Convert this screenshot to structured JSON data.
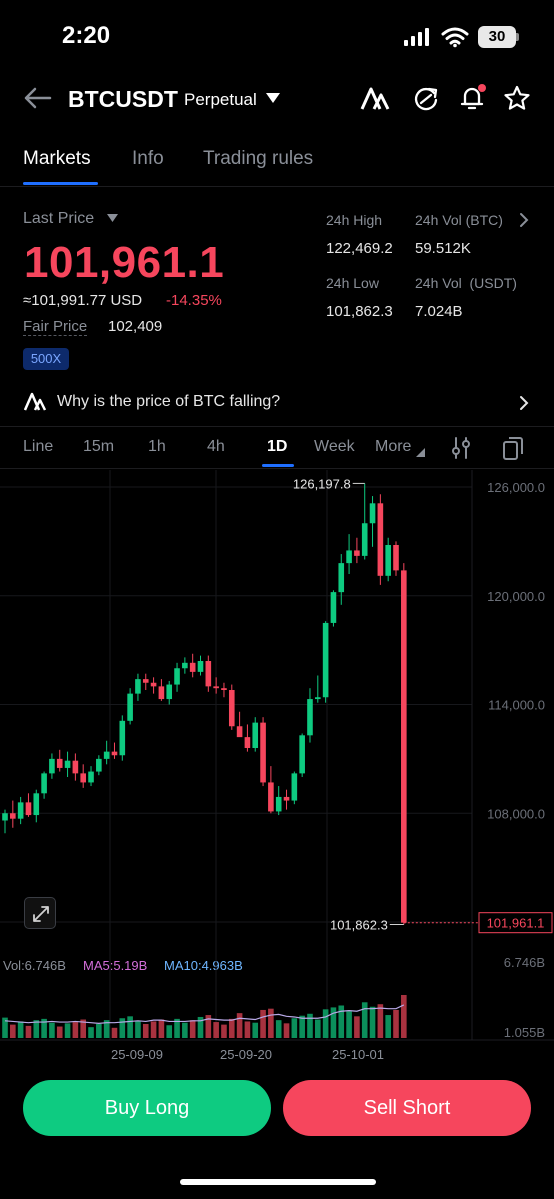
{
  "status_bar": {
    "time": "2:20",
    "battery": "30"
  },
  "header": {
    "pair": "BTCUSDT",
    "contract_type": "Perpetual",
    "icons": [
      "back-arrow-icon",
      "ai-icon",
      "refresh-icon",
      "bell-icon",
      "star-icon"
    ]
  },
  "tabs": [
    {
      "label": "Markets",
      "active": true
    },
    {
      "label": "Info",
      "active": false
    },
    {
      "label": "Trading rules",
      "active": false
    }
  ],
  "price": {
    "last_price_label": "Last Price",
    "last_price": "101,961.1",
    "usd_equiv": "≈101,991.77 USD",
    "change": "-14.35%",
    "fair_price_label": "Fair Price",
    "fair_price": "102,409",
    "leverage_badge": "500X"
  },
  "stats": {
    "high_label": "24h High",
    "high": "122,469.2",
    "vol_btc_label": "24h Vol (BTC)",
    "vol_btc": "59.512K",
    "low_label": "24h Low",
    "low": "101,862.3",
    "vol_usdt_label": "24h Vol  (USDT)",
    "vol_usdt": "7.024B"
  },
  "ai_banner": {
    "text": "Why is the price of BTC falling?"
  },
  "intervals": [
    {
      "label": "Line",
      "active": false
    },
    {
      "label": "15m",
      "active": false
    },
    {
      "label": "1h",
      "active": false
    },
    {
      "label": "4h",
      "active": false
    },
    {
      "label": "1D",
      "active": true
    },
    {
      "label": "Week",
      "active": false
    },
    {
      "label": "More",
      "active": false
    }
  ],
  "volume_panel": {
    "vol": "Vol:6.746B",
    "ma5": "MA5:5.19B",
    "ma10": "MA10:4.963B",
    "top_label": "6.746B",
    "bottom_label": "1.055B"
  },
  "actions": {
    "buy": "Buy Long",
    "sell": "Sell Short"
  },
  "colors": {
    "up": "#0ecb81",
    "down": "#f6465d",
    "accent": "#1f6fff"
  },
  "chart_data": {
    "type": "candlestick",
    "y_ticks": [
      "126,000.0",
      "120,000.0",
      "114,000.0",
      "108,000.0",
      "102,000.0"
    ],
    "y_tick_values": [
      126000,
      120000,
      114000,
      108000,
      102000
    ],
    "x_ticks": [
      "25-09-09",
      "25-09-20",
      "25-10-01"
    ],
    "high_marker": "126,197.8",
    "low_marker": "101,862.3",
    "current_price_tag": "101,961.1",
    "candles": [
      {
        "o": 107600,
        "h": 108200,
        "l": 106900,
        "c": 108000
      },
      {
        "o": 108000,
        "h": 108700,
        "l": 107200,
        "c": 107700
      },
      {
        "o": 107700,
        "h": 108900,
        "l": 107400,
        "c": 108600
      },
      {
        "o": 108600,
        "h": 109100,
        "l": 107800,
        "c": 107900
      },
      {
        "o": 107900,
        "h": 109300,
        "l": 107500,
        "c": 109100
      },
      {
        "o": 109100,
        "h": 110300,
        "l": 108800,
        "c": 110200
      },
      {
        "o": 110200,
        "h": 111300,
        "l": 109900,
        "c": 111000
      },
      {
        "o": 111000,
        "h": 111500,
        "l": 110300,
        "c": 110500
      },
      {
        "o": 110500,
        "h": 111400,
        "l": 110000,
        "c": 110900
      },
      {
        "o": 110900,
        "h": 111300,
        "l": 109800,
        "c": 110200
      },
      {
        "o": 110200,
        "h": 110700,
        "l": 109400,
        "c": 109700
      },
      {
        "o": 109700,
        "h": 110600,
        "l": 109500,
        "c": 110300
      },
      {
        "o": 110300,
        "h": 111200,
        "l": 110100,
        "c": 111000
      },
      {
        "o": 111000,
        "h": 112000,
        "l": 110700,
        "c": 111400
      },
      {
        "o": 111400,
        "h": 111900,
        "l": 111000,
        "c": 111200
      },
      {
        "o": 111200,
        "h": 113400,
        "l": 110900,
        "c": 113100
      },
      {
        "o": 113100,
        "h": 114900,
        "l": 112900,
        "c": 114600
      },
      {
        "o": 114600,
        "h": 115700,
        "l": 114200,
        "c": 115400
      },
      {
        "o": 115400,
        "h": 115700,
        "l": 114800,
        "c": 115200
      },
      {
        "o": 115200,
        "h": 115500,
        "l": 114600,
        "c": 115000
      },
      {
        "o": 115000,
        "h": 115400,
        "l": 114200,
        "c": 114300
      },
      {
        "o": 114300,
        "h": 115300,
        "l": 114000,
        "c": 115100
      },
      {
        "o": 115100,
        "h": 116300,
        "l": 114700,
        "c": 116000
      },
      {
        "o": 116000,
        "h": 116600,
        "l": 115700,
        "c": 116300
      },
      {
        "o": 116300,
        "h": 116800,
        "l": 115500,
        "c": 115800
      },
      {
        "o": 115800,
        "h": 116700,
        "l": 115600,
        "c": 116400
      },
      {
        "o": 116400,
        "h": 116700,
        "l": 114700,
        "c": 115000
      },
      {
        "o": 115000,
        "h": 115500,
        "l": 114600,
        "c": 114900
      },
      {
        "o": 114900,
        "h": 115200,
        "l": 114400,
        "c": 114800
      },
      {
        "o": 114800,
        "h": 115100,
        "l": 112600,
        "c": 112800
      },
      {
        "o": 112800,
        "h": 113600,
        "l": 112300,
        "c": 112200
      },
      {
        "o": 112200,
        "h": 112900,
        "l": 111400,
        "c": 111600
      },
      {
        "o": 111600,
        "h": 113300,
        "l": 111400,
        "c": 113000
      },
      {
        "o": 113000,
        "h": 113300,
        "l": 109500,
        "c": 109700
      },
      {
        "o": 109700,
        "h": 110600,
        "l": 108000,
        "c": 108100
      },
      {
        "o": 108100,
        "h": 109500,
        "l": 107900,
        "c": 108900
      },
      {
        "o": 108900,
        "h": 109300,
        "l": 108200,
        "c": 108700
      },
      {
        "o": 108700,
        "h": 110300,
        "l": 108500,
        "c": 110200
      },
      {
        "o": 110200,
        "h": 112400,
        "l": 110000,
        "c": 112300
      },
      {
        "o": 112300,
        "h": 114900,
        "l": 111900,
        "c": 114300
      },
      {
        "o": 114300,
        "h": 115600,
        "l": 114100,
        "c": 114400
      },
      {
        "o": 114400,
        "h": 118600,
        "l": 114100,
        "c": 118500
      },
      {
        "o": 118500,
        "h": 120300,
        "l": 118300,
        "c": 120200
      },
      {
        "o": 120200,
        "h": 122300,
        "l": 119500,
        "c": 121800
      },
      {
        "o": 121800,
        "h": 123400,
        "l": 121200,
        "c": 122500
      },
      {
        "o": 122500,
        "h": 123200,
        "l": 121800,
        "c": 122200
      },
      {
        "o": 122200,
        "h": 126197.8,
        "l": 122000,
        "c": 124000
      },
      {
        "o": 124000,
        "h": 125500,
        "l": 122700,
        "c": 125100
      },
      {
        "o": 125100,
        "h": 125600,
        "l": 120600,
        "c": 121100
      },
      {
        "o": 121100,
        "h": 123200,
        "l": 120800,
        "c": 122800
      },
      {
        "o": 122800,
        "h": 123000,
        "l": 121100,
        "c": 121400
      },
      {
        "o": 121400,
        "h": 121800,
        "l": 101862.3,
        "c": 101961.1
      }
    ],
    "volumes": [
      3.2,
      2.1,
      2.6,
      1.9,
      2.8,
      3.0,
      2.4,
      1.8,
      2.3,
      2.5,
      2.9,
      1.7,
      2.2,
      2.8,
      1.6,
      3.1,
      3.4,
      2.7,
      2.2,
      2.6,
      2.9,
      2.0,
      3.0,
      2.4,
      2.8,
      3.3,
      3.6,
      2.5,
      2.1,
      3.0,
      3.9,
      2.6,
      2.4,
      4.4,
      4.6,
      2.8,
      2.3,
      3.1,
      3.5,
      3.8,
      2.9,
      4.5,
      4.8,
      5.1,
      4.2,
      3.4,
      5.6,
      4.9,
      5.3,
      3.6,
      4.4,
      6.746
    ],
    "ma5": [
      2.7,
      2.6,
      2.5,
      2.4,
      2.5,
      2.5,
      2.6,
      2.5,
      2.5,
      2.6,
      2.5,
      2.4,
      2.3,
      2.4,
      2.4,
      2.5,
      2.6,
      2.7,
      2.6,
      2.8,
      2.8,
      2.6,
      2.6,
      2.6,
      2.7,
      2.7,
      3.0,
      2.9,
      2.8,
      2.8,
      3.1,
      3.0,
      2.9,
      3.3,
      3.6,
      3.7,
      3.4,
      3.3,
      3.1,
      3.1,
      3.1,
      3.3,
      3.9,
      4.2,
      4.3,
      4.2,
      4.6,
      4.6,
      4.7,
      4.6,
      4.6,
      5.19
    ]
  }
}
